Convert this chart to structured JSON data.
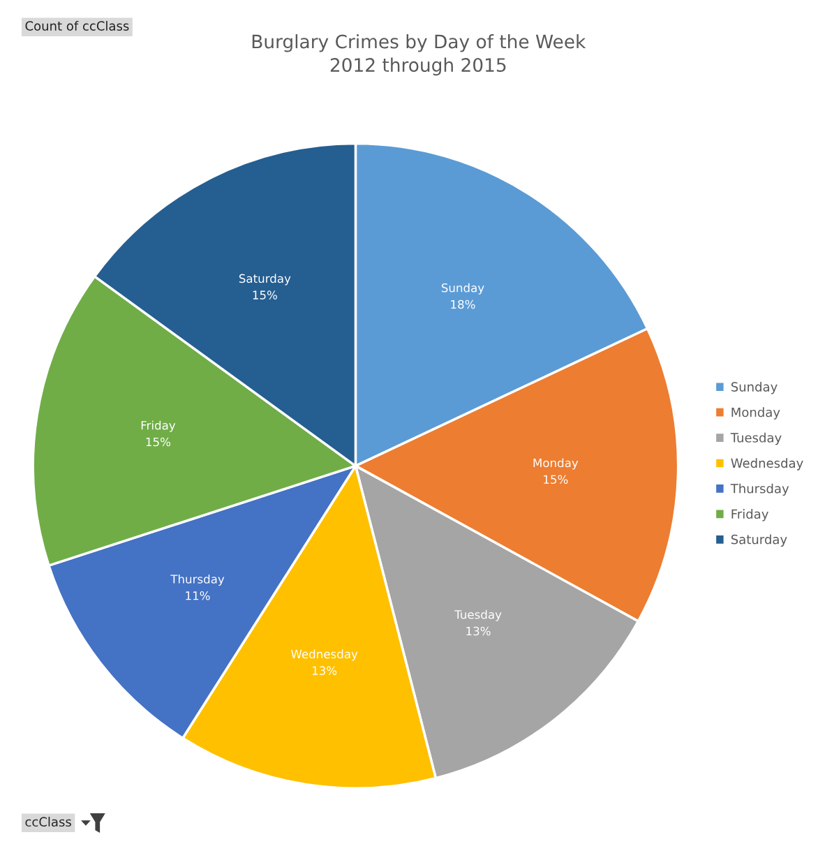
{
  "chart_data": {
    "type": "pie",
    "title": "Burglary Crimes by Day of the Week\n2012 through 2015",
    "categories": [
      "Sunday",
      "Monday",
      "Tuesday",
      "Wednesday",
      "Thursday",
      "Friday",
      "Saturday"
    ],
    "values": [
      18,
      15,
      13,
      13,
      11,
      15,
      15
    ],
    "value_labels": [
      "18%",
      "15%",
      "13%",
      "13%",
      "11%",
      "15%",
      "15%"
    ],
    "colors": [
      "#5b9bd5",
      "#ed7d31",
      "#a5a5a5",
      "#ffc000",
      "#4472c4",
      "#70ad47",
      "#255e91"
    ],
    "legend": "right",
    "annotations": [
      "Count of ccClass",
      "ccClass"
    ]
  }
}
